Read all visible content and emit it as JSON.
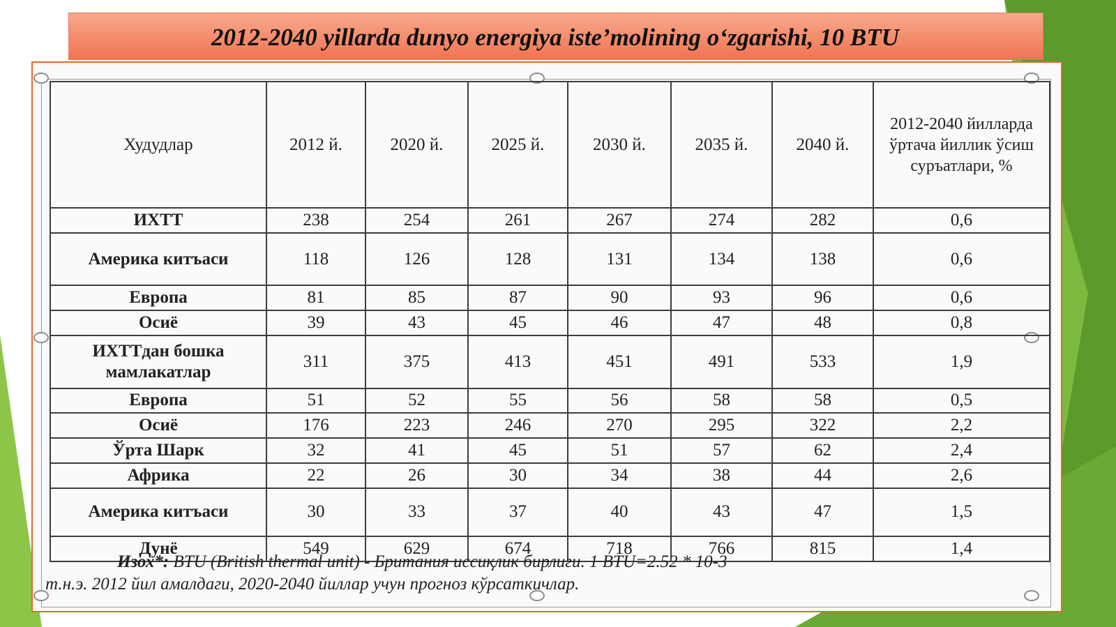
{
  "slide": {
    "title": "2012-2040 yillarda dunyo energiya iste’molining o‘zgarishi, 10 BTU"
  },
  "table": {
    "header": {
      "region": "Худудлар",
      "years": [
        "2012 й.",
        "2020 й.",
        "2025 й.",
        "2030 й.",
        "2035 й.",
        "2040 й."
      ],
      "growth": "2012-2040 йилларда ўртача йиллик ўсиш суръатлари, %"
    },
    "rows": [
      {
        "region": "ИХТТ",
        "values": [
          "238",
          "254",
          "261",
          "267",
          "274",
          "282"
        ],
        "growth": "0,6"
      },
      {
        "region": "Америка китъаси",
        "values": [
          "118",
          "126",
          "128",
          "131",
          "134",
          "138"
        ],
        "growth": "0,6"
      },
      {
        "region": "Европа",
        "values": [
          "81",
          "85",
          "87",
          "90",
          "93",
          "96"
        ],
        "growth": "0,6"
      },
      {
        "region": "Осиё",
        "values": [
          "39",
          "43",
          "45",
          "46",
          "47",
          "48"
        ],
        "growth": "0,8"
      },
      {
        "region": "ИХТТдан бошка мамлакатлар",
        "values": [
          "311",
          "375",
          "413",
          "451",
          "491",
          "533"
        ],
        "growth": "1,9"
      },
      {
        "region": "Европа",
        "values": [
          "51",
          "52",
          "55",
          "56",
          "58",
          "58"
        ],
        "growth": "0,5"
      },
      {
        "region": "Осиё",
        "values": [
          "176",
          "223",
          "246",
          "270",
          "295",
          "322"
        ],
        "growth": "2,2"
      },
      {
        "region": "Ўрта Шарк",
        "values": [
          "32",
          "41",
          "45",
          "51",
          "57",
          "62"
        ],
        "growth": "2,4"
      },
      {
        "region": "Африка",
        "values": [
          "22",
          "26",
          "30",
          "34",
          "38",
          "44"
        ],
        "growth": "2,6"
      },
      {
        "region": "Америка китъаси",
        "values": [
          "30",
          "33",
          "37",
          "40",
          "43",
          "47"
        ],
        "growth": "1,5"
      },
      {
        "region": "Дунё",
        "values": [
          "549",
          "629",
          "674",
          "718",
          "766",
          "815"
        ],
        "growth": "1,4"
      }
    ]
  },
  "note": {
    "label": "Изох*:",
    "line1": " BTU (British thermal unit) - Британия иссиқлик бирлиги. 1 BTU=2.52 * 10-3",
    "line2": "т.н.э. 2012 йил амалдаги, 2020-2040 йиллар учун прогноз кўрсаткичлар."
  },
  "colors": {
    "accent_green": "#72b33a",
    "title_band": "#f07452",
    "frame_border": "#e9672b"
  }
}
